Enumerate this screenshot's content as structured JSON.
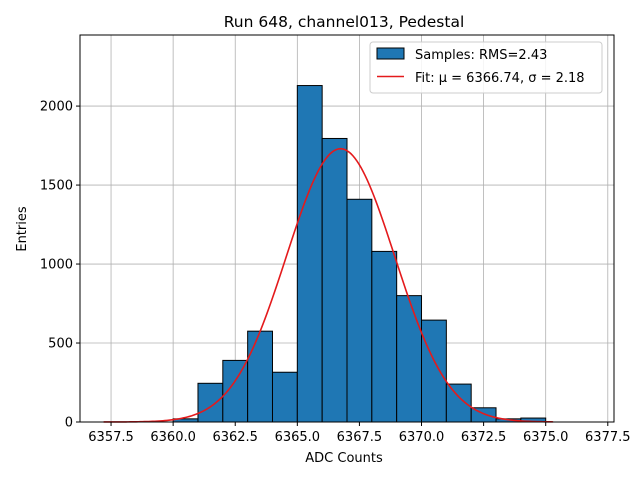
{
  "chart_data": {
    "type": "bar",
    "title": "Run 648, channel013, Pedestal",
    "xlabel": "ADC Counts",
    "ylabel": "Entries",
    "xlim": [
      6356.25,
      6377.75
    ],
    "ylim": [
      0,
      2450
    ],
    "x_ticks": [
      6357.5,
      6360.0,
      6362.5,
      6365.0,
      6367.5,
      6370.0,
      6372.5,
      6375.0,
      6377.5
    ],
    "x_tick_labels": [
      "6357.5",
      "6360.0",
      "6362.5",
      "6365.0",
      "6367.5",
      "6370.0",
      "6372.5",
      "6375.0",
      "6377.5"
    ],
    "y_ticks": [
      0,
      500,
      1000,
      1500,
      2000
    ],
    "y_tick_labels": [
      "0",
      "500",
      "1000",
      "1500",
      "2000"
    ],
    "grid": true,
    "legend_position": "top-right",
    "bin_edges": [
      6360,
      6361,
      6362,
      6363,
      6364,
      6365,
      6366,
      6367,
      6368,
      6369,
      6370,
      6371,
      6372,
      6373,
      6374,
      6375
    ],
    "values": [
      20,
      245,
      390,
      575,
      315,
      2130,
      1795,
      1410,
      1080,
      800,
      645,
      240,
      90,
      20,
      25
    ],
    "series": [
      {
        "name": "Samples: RMS=2.43",
        "kind": "histogram",
        "color": "#1f77b4",
        "edgecolor": "#000000"
      },
      {
        "name": "Fit: μ = 6366.74, σ = 2.18",
        "kind": "gaussian",
        "color": "#e41a1c",
        "amplitude": 1730,
        "mean": 6366.74,
        "sigma": 2.18,
        "x_range": [
          6357.2,
          6375.3
        ]
      }
    ]
  }
}
